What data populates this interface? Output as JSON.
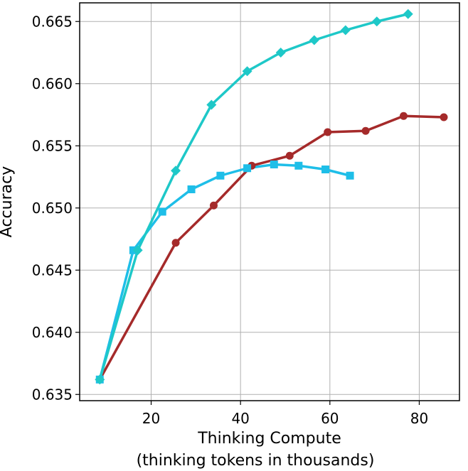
{
  "chart_data": {
    "type": "line",
    "title": "",
    "xlabel_line1": "Thinking Compute",
    "xlabel_line2": "(thinking tokens in thousands)",
    "ylabel": "Accuracy",
    "xlim": [
      4,
      89
    ],
    "ylim": [
      0.6345,
      0.6665
    ],
    "xticks": [
      20,
      40,
      60,
      80
    ],
    "xtick_labels": [
      "20",
      "40",
      "60",
      "80"
    ],
    "yticks": [
      0.635,
      0.64,
      0.645,
      0.65,
      0.655,
      0.66,
      0.665
    ],
    "ytick_labels": [
      "0.635",
      "0.640",
      "0.645",
      "0.650",
      "0.655",
      "0.660",
      "0.665"
    ],
    "grid": true,
    "legend": "none",
    "series": [
      {
        "color": "#a52a2a",
        "marker": "circle",
        "x": [
          8.5,
          25.5,
          34.0,
          42.5,
          51.0,
          59.5,
          68.0,
          76.5,
          85.5
        ],
        "y": [
          0.6362,
          0.6472,
          0.6502,
          0.6534,
          0.6542,
          0.6561,
          0.6562,
          0.6574,
          0.6573
        ]
      },
      {
        "color": "#1ebee8",
        "marker": "square",
        "x": [
          8.5,
          16.0,
          22.5,
          29.0,
          35.5,
          41.5,
          47.5,
          53.0,
          59.0,
          64.5
        ],
        "y": [
          0.6362,
          0.6466,
          0.6497,
          0.6515,
          0.6526,
          0.6532,
          0.6535,
          0.6534,
          0.6531,
          0.6526
        ]
      },
      {
        "color": "#1ec8c8",
        "marker": "diamond",
        "x": [
          8.5,
          17.0,
          25.5,
          33.5,
          41.5,
          49.0,
          56.5,
          63.5,
          70.5,
          77.5
        ],
        "y": [
          0.6362,
          0.6466,
          0.653,
          0.6583,
          0.661,
          0.6625,
          0.6635,
          0.6643,
          0.665,
          0.6656
        ]
      }
    ]
  }
}
